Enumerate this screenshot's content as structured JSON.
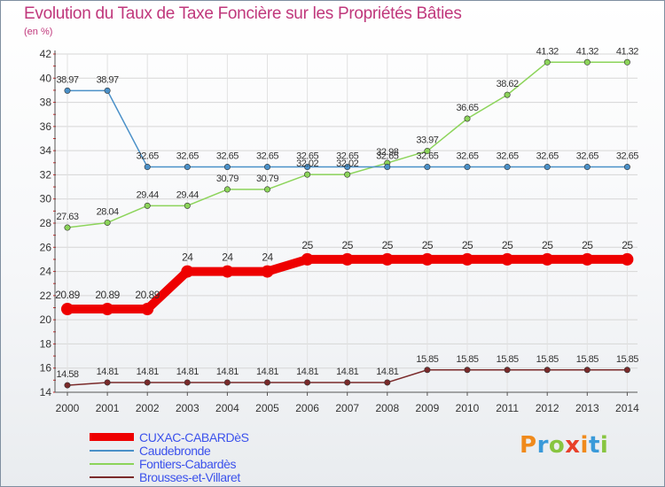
{
  "title": "Evolution du Taux de Taxe Foncière sur les Propriétés Bâties",
  "unit_label": "(en %)",
  "logo": {
    "text": "Proxiti",
    "colors": [
      "#f08a1c",
      "#3a9ad9",
      "#88c540",
      "#e8402a",
      "#f08a1c",
      "#3a9ad9",
      "#88c540"
    ]
  },
  "chart_data": {
    "type": "line",
    "x": [
      "2000",
      "2001",
      "2002",
      "2003",
      "2004",
      "2005",
      "2006",
      "2007",
      "2008",
      "2009",
      "2010",
      "2011",
      "2012",
      "2013",
      "2014"
    ],
    "ylim": [
      14,
      42
    ],
    "yticks": [
      14,
      16,
      18,
      20,
      22,
      24,
      26,
      28,
      30,
      32,
      34,
      36,
      38,
      40,
      42
    ],
    "grid": true,
    "legend_position": "bottom-left",
    "series": [
      {
        "name": "CUXAC-CABARDèS",
        "color": "#ee0000",
        "bold": true,
        "values": [
          20.89,
          20.89,
          20.89,
          24,
          24,
          24,
          25,
          25,
          25,
          25,
          25,
          25,
          25,
          25,
          25
        ],
        "labels": [
          "20.89",
          "20.89",
          "20.89",
          "24",
          "24",
          "24",
          "25",
          "25",
          "25",
          "25",
          "25",
          "25",
          "25",
          "25",
          "25"
        ]
      },
      {
        "name": "Caudebronde",
        "color": "#4a90c8",
        "values": [
          38.97,
          38.97,
          32.65,
          32.65,
          32.65,
          32.65,
          32.65,
          32.65,
          32.65,
          32.65,
          32.65,
          32.65,
          32.65,
          32.65,
          32.65
        ],
        "labels": [
          "38.97",
          "38.97",
          "32.65",
          "32.65",
          "32.65",
          "32.65",
          "32.65",
          "32.65",
          "32.65",
          "32.65",
          "32.65",
          "32.65",
          "32.65",
          "32.65",
          "32.65"
        ]
      },
      {
        "name": "Fontiers-Cabardès",
        "color": "#8cd45a",
        "values": [
          27.63,
          28.04,
          29.44,
          29.44,
          30.79,
          30.79,
          32.02,
          32.02,
          32.98,
          33.97,
          36.65,
          38.62,
          41.32,
          41.32,
          41.32
        ],
        "labels": [
          "27.63",
          "28.04",
          "29.44",
          "29.44",
          "30.79",
          "30.79",
          "32.02",
          "32.02",
          "32.98",
          "33.97",
          "36.65",
          "38.62",
          "41.32",
          "41.32",
          "41.32"
        ]
      },
      {
        "name": "Brousses-et-Villaret",
        "color": "#7a2a2a",
        "values": [
          14.58,
          14.81,
          14.81,
          14.81,
          14.81,
          14.81,
          14.81,
          14.81,
          14.81,
          15.85,
          15.85,
          15.85,
          15.85,
          15.85,
          15.85
        ],
        "labels": [
          "14.58",
          "14.81",
          "14.81",
          "14.81",
          "14.81",
          "14.81",
          "14.81",
          "14.81",
          "14.81",
          "15.85",
          "15.85",
          "15.85",
          "15.85",
          "15.85",
          "15.85"
        ]
      }
    ]
  }
}
